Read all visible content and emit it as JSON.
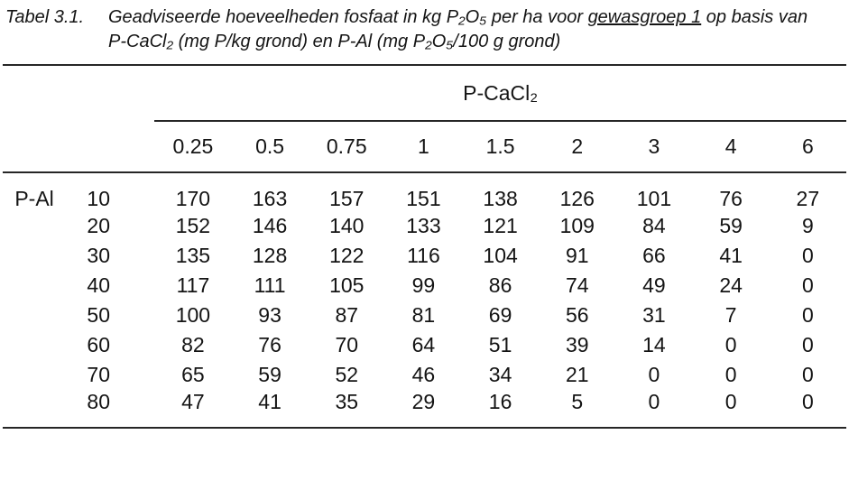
{
  "caption": {
    "label": "Tabel 3.1.",
    "line1_pre": "Geadviseerde hoeveelheden fosfaat in kg P₂O₅ per ha voor ",
    "line1_underline": "gewasgroep 1",
    "line1_post": " op basis van",
    "line2": "P-CaCl₂ (mg P/kg grond) en P-Al (mg P₂O₅/100 g grond)"
  },
  "table": {
    "spanner_label": "P-CaCl₂",
    "row_axis_label": "P-Al",
    "col_headers": [
      "0.25",
      "0.5",
      "0.75",
      "1",
      "1.5",
      "2",
      "3",
      "4",
      "6"
    ],
    "rows": [
      {
        "key": "10",
        "values": [
          170,
          163,
          157,
          151,
          138,
          126,
          101,
          76,
          27
        ]
      },
      {
        "key": "20",
        "values": [
          152,
          146,
          140,
          133,
          121,
          109,
          84,
          59,
          9
        ]
      },
      {
        "key": "30",
        "values": [
          135,
          128,
          122,
          116,
          104,
          91,
          66,
          41,
          0
        ]
      },
      {
        "key": "40",
        "values": [
          117,
          111,
          105,
          99,
          86,
          74,
          49,
          24,
          0
        ]
      },
      {
        "key": "50",
        "values": [
          100,
          93,
          87,
          81,
          69,
          56,
          31,
          7,
          0
        ]
      },
      {
        "key": "60",
        "values": [
          82,
          76,
          70,
          64,
          51,
          39,
          14,
          0,
          0
        ]
      },
      {
        "key": "70",
        "values": [
          65,
          59,
          52,
          46,
          34,
          21,
          0,
          0,
          0
        ]
      },
      {
        "key": "80",
        "values": [
          47,
          41,
          35,
          29,
          16,
          5,
          0,
          0,
          0
        ]
      }
    ]
  },
  "colors": {
    "rule": "#262626",
    "text": "#141414",
    "background": "#ffffff"
  }
}
